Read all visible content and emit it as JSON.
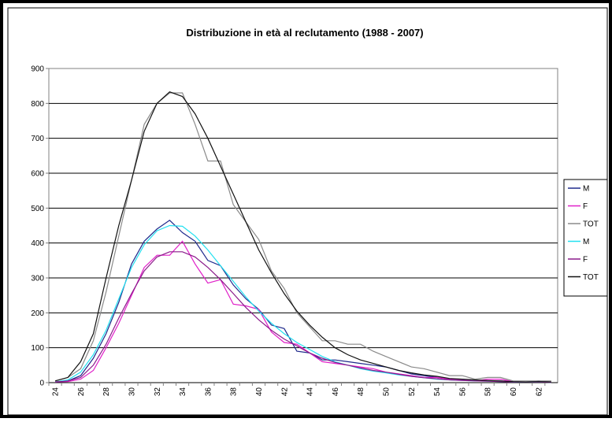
{
  "chart_data": {
    "type": "line",
    "title": "Distribuzione in età al reclutamento (1988 - 2007)",
    "categories": [
      "24",
      null,
      "26",
      null,
      "28",
      null,
      "30",
      null,
      "32",
      null,
      "34",
      null,
      "36",
      null,
      "38",
      null,
      "40",
      null,
      "42",
      null,
      "44",
      null,
      "46",
      null,
      "48",
      null,
      "50",
      null,
      "52",
      null,
      "54",
      null,
      "56",
      null,
      "58",
      null,
      "60",
      null,
      "62",
      null
    ],
    "ylim": [
      0,
      900
    ],
    "yticks": [
      0,
      100,
      200,
      300,
      400,
      500,
      600,
      700,
      800,
      900
    ],
    "grid": true,
    "legend": "right",
    "series": [
      {
        "name": "M",
        "color": "#1f2a8c",
        "values": [
          2,
          5,
          20,
          70,
          140,
          230,
          340,
          405,
          440,
          465,
          430,
          405,
          350,
          335,
          280,
          240,
          210,
          165,
          155,
          90,
          85,
          65,
          65,
          60,
          55,
          50,
          45,
          35,
          25,
          20,
          15,
          10,
          10,
          5,
          5,
          5,
          2,
          2,
          5,
          2
        ]
      },
      {
        "name": "F",
        "color": "#e020c8",
        "values": [
          2,
          3,
          10,
          35,
          100,
          170,
          250,
          330,
          365,
          365,
          405,
          340,
          285,
          295,
          225,
          220,
          210,
          145,
          115,
          110,
          85,
          60,
          55,
          50,
          45,
          40,
          30,
          25,
          20,
          15,
          15,
          10,
          8,
          5,
          10,
          10,
          3,
          2,
          2,
          2
        ]
      },
      {
        "name": "TOT",
        "color": "#8a8a8a",
        "values": [
          5,
          15,
          40,
          120,
          260,
          420,
          580,
          740,
          800,
          830,
          830,
          740,
          635,
          635,
          510,
          460,
          410,
          320,
          270,
          200,
          160,
          120,
          120,
          110,
          110,
          90,
          75,
          60,
          45,
          40,
          30,
          20,
          20,
          10,
          15,
          15,
          5,
          5,
          5,
          5
        ]
      },
      {
        "name": "M",
        "color": "#22e0f0",
        "values": [
          2,
          8,
          30,
          80,
          150,
          240,
          330,
          395,
          435,
          450,
          448,
          420,
          380,
          335,
          290,
          245,
          205,
          170,
          140,
          115,
          95,
          75,
          60,
          50,
          40,
          33,
          28,
          22,
          18,
          14,
          10,
          8,
          6,
          5,
          4,
          3,
          2,
          2,
          2,
          1
        ]
      },
      {
        "name": "F",
        "color": "#8a1a8a",
        "values": [
          2,
          5,
          15,
          50,
          110,
          185,
          255,
          320,
          360,
          375,
          375,
          360,
          330,
          295,
          255,
          215,
          180,
          150,
          125,
          105,
          85,
          70,
          58,
          50,
          42,
          35,
          30,
          24,
          18,
          14,
          11,
          8,
          6,
          5,
          4,
          3,
          2,
          2,
          2,
          1
        ]
      },
      {
        "name": "TOT",
        "color": "#111111",
        "values": [
          5,
          15,
          60,
          140,
          300,
          450,
          580,
          720,
          800,
          833,
          820,
          770,
          700,
          620,
          540,
          460,
          380,
          315,
          255,
          205,
          165,
          130,
          100,
          80,
          65,
          55,
          45,
          35,
          28,
          22,
          18,
          12,
          10,
          8,
          6,
          5,
          3,
          2,
          3,
          2
        ]
      }
    ]
  }
}
